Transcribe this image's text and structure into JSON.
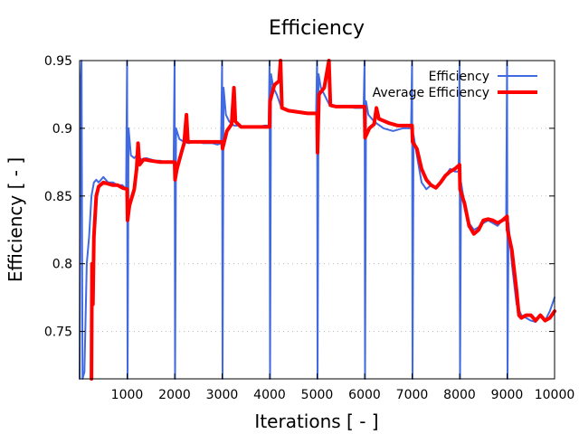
{
  "chart_data": {
    "type": "line",
    "title": "Efficiency",
    "xlabel": "Iterations [ - ]",
    "ylabel": "Efficiency [ - ]",
    "xlim": [
      0,
      10000
    ],
    "ylim": [
      0.715,
      0.95
    ],
    "xticks": [
      1000,
      2000,
      3000,
      4000,
      5000,
      6000,
      7000,
      8000,
      9000,
      10000
    ],
    "xtick_labels": [
      "1000",
      "2000",
      "3000",
      "4000",
      "5000",
      "6000",
      "7000",
      "8000",
      "9000",
      "10000"
    ],
    "yticks": [
      0.75,
      0.8,
      0.85,
      0.9,
      0.95
    ],
    "ytick_labels": [
      "0.75",
      "0.8",
      "0.85",
      "0.9",
      "0.95"
    ],
    "grid": true,
    "legend_position": "top-right",
    "series": [
      {
        "name": "Efficiency",
        "color": "#4169e1",
        "points": [
          [
            0,
            0.715
          ],
          [
            20,
            0.93
          ],
          [
            40,
            0.95
          ],
          [
            60,
            0.715
          ],
          [
            100,
            0.72
          ],
          [
            150,
            0.8
          ],
          [
            200,
            0.82
          ],
          [
            250,
            0.85
          ],
          [
            300,
            0.86
          ],
          [
            350,
            0.862
          ],
          [
            400,
            0.86
          ],
          [
            500,
            0.864
          ],
          [
            600,
            0.86
          ],
          [
            700,
            0.86
          ],
          [
            800,
            0.858
          ],
          [
            900,
            0.858
          ],
          [
            980,
            0.855
          ],
          [
            1000,
            0.95
          ],
          [
            1010,
            0.715
          ],
          [
            1030,
            0.9
          ],
          [
            1080,
            0.88
          ],
          [
            1150,
            0.878
          ],
          [
            1200,
            0.88
          ],
          [
            1300,
            0.877
          ],
          [
            1400,
            0.878
          ],
          [
            1500,
            0.877
          ],
          [
            1600,
            0.876
          ],
          [
            1700,
            0.876
          ],
          [
            1800,
            0.875
          ],
          [
            1900,
            0.875
          ],
          [
            1980,
            0.875
          ],
          [
            2000,
            0.95
          ],
          [
            2010,
            0.715
          ],
          [
            2030,
            0.9
          ],
          [
            2100,
            0.892
          ],
          [
            2200,
            0.89
          ],
          [
            2300,
            0.889
          ],
          [
            2400,
            0.89
          ],
          [
            2500,
            0.89
          ],
          [
            2600,
            0.889
          ],
          [
            2700,
            0.889
          ],
          [
            2800,
            0.889
          ],
          [
            2900,
            0.888
          ],
          [
            2980,
            0.889
          ],
          [
            3000,
            0.95
          ],
          [
            3010,
            0.715
          ],
          [
            3030,
            0.93
          ],
          [
            3080,
            0.91
          ],
          [
            3150,
            0.905
          ],
          [
            3250,
            0.902
          ],
          [
            3350,
            0.902
          ],
          [
            3450,
            0.901
          ],
          [
            3600,
            0.901
          ],
          [
            3750,
            0.901
          ],
          [
            3900,
            0.902
          ],
          [
            3980,
            0.902
          ],
          [
            4000,
            0.95
          ],
          [
            4010,
            0.715
          ],
          [
            4030,
            0.94
          ],
          [
            4080,
            0.93
          ],
          [
            4150,
            0.925
          ],
          [
            4250,
            0.915
          ],
          [
            4350,
            0.913
          ],
          [
            4500,
            0.912
          ],
          [
            4700,
            0.911
          ],
          [
            4900,
            0.911
          ],
          [
            4980,
            0.911
          ],
          [
            5000,
            0.95
          ],
          [
            5010,
            0.715
          ],
          [
            5030,
            0.94
          ],
          [
            5080,
            0.93
          ],
          [
            5150,
            0.925
          ],
          [
            5250,
            0.918
          ],
          [
            5400,
            0.916
          ],
          [
            5600,
            0.916
          ],
          [
            5800,
            0.915
          ],
          [
            5980,
            0.915
          ],
          [
            6000,
            0.95
          ],
          [
            6010,
            0.715
          ],
          [
            6030,
            0.92
          ],
          [
            6080,
            0.91
          ],
          [
            6200,
            0.905
          ],
          [
            6400,
            0.9
          ],
          [
            6600,
            0.898
          ],
          [
            6800,
            0.9
          ],
          [
            6980,
            0.9
          ],
          [
            7000,
            0.95
          ],
          [
            7010,
            0.715
          ],
          [
            7030,
            0.895
          ],
          [
            7100,
            0.88
          ],
          [
            7200,
            0.86
          ],
          [
            7300,
            0.855
          ],
          [
            7400,
            0.858
          ],
          [
            7500,
            0.857
          ],
          [
            7600,
            0.86
          ],
          [
            7700,
            0.865
          ],
          [
            7800,
            0.87
          ],
          [
            7900,
            0.868
          ],
          [
            7980,
            0.868
          ],
          [
            8000,
            0.95
          ],
          [
            8010,
            0.715
          ],
          [
            8030,
            0.86
          ],
          [
            8100,
            0.845
          ],
          [
            8200,
            0.83
          ],
          [
            8300,
            0.825
          ],
          [
            8400,
            0.827
          ],
          [
            8500,
            0.83
          ],
          [
            8600,
            0.832
          ],
          [
            8700,
            0.83
          ],
          [
            8800,
            0.828
          ],
          [
            8900,
            0.832
          ],
          [
            8980,
            0.832
          ],
          [
            9000,
            0.95
          ],
          [
            9010,
            0.715
          ],
          [
            9030,
            0.83
          ],
          [
            9100,
            0.8
          ],
          [
            9200,
            0.77
          ],
          [
            9300,
            0.762
          ],
          [
            9400,
            0.76
          ],
          [
            9500,
            0.758
          ],
          [
            9600,
            0.757
          ],
          [
            9700,
            0.762
          ],
          [
            9800,
            0.758
          ],
          [
            9900,
            0.765
          ],
          [
            10000,
            0.775
          ]
        ]
      },
      {
        "name": "Average Efficiency",
        "color": "#ff0000",
        "points": [
          [
            250,
            0.715
          ],
          [
            260,
            0.8
          ],
          [
            280,
            0.77
          ],
          [
            300,
            0.82
          ],
          [
            350,
            0.85
          ],
          [
            400,
            0.857
          ],
          [
            500,
            0.86
          ],
          [
            600,
            0.859
          ],
          [
            700,
            0.858
          ],
          [
            800,
            0.858
          ],
          [
            900,
            0.856
          ],
          [
            1000,
            0.855
          ],
          [
            1010,
            0.832
          ],
          [
            1050,
            0.843
          ],
          [
            1150,
            0.855
          ],
          [
            1200,
            0.87
          ],
          [
            1230,
            0.889
          ],
          [
            1260,
            0.873
          ],
          [
            1350,
            0.877
          ],
          [
            1500,
            0.876
          ],
          [
            1700,
            0.875
          ],
          [
            1900,
            0.875
          ],
          [
            2000,
            0.875
          ],
          [
            2010,
            0.862
          ],
          [
            2050,
            0.87
          ],
          [
            2150,
            0.883
          ],
          [
            2200,
            0.889
          ],
          [
            2250,
            0.91
          ],
          [
            2280,
            0.89
          ],
          [
            2400,
            0.89
          ],
          [
            2600,
            0.89
          ],
          [
            2800,
            0.89
          ],
          [
            3000,
            0.89
          ],
          [
            3010,
            0.885
          ],
          [
            3100,
            0.898
          ],
          [
            3200,
            0.903
          ],
          [
            3250,
            0.93
          ],
          [
            3280,
            0.905
          ],
          [
            3400,
            0.901
          ],
          [
            3600,
            0.901
          ],
          [
            3800,
            0.901
          ],
          [
            4000,
            0.901
          ],
          [
            4010,
            0.92
          ],
          [
            4100,
            0.932
          ],
          [
            4200,
            0.935
          ],
          [
            4230,
            0.95
          ],
          [
            4260,
            0.915
          ],
          [
            4400,
            0.913
          ],
          [
            4600,
            0.912
          ],
          [
            4800,
            0.911
          ],
          [
            5000,
            0.911
          ],
          [
            5010,
            0.882
          ],
          [
            5040,
            0.925
          ],
          [
            5150,
            0.93
          ],
          [
            5250,
            0.95
          ],
          [
            5280,
            0.917
          ],
          [
            5400,
            0.916
          ],
          [
            5600,
            0.916
          ],
          [
            5800,
            0.916
          ],
          [
            6000,
            0.916
          ],
          [
            6010,
            0.893
          ],
          [
            6100,
            0.9
          ],
          [
            6200,
            0.903
          ],
          [
            6250,
            0.915
          ],
          [
            6300,
            0.907
          ],
          [
            6500,
            0.904
          ],
          [
            6700,
            0.902
          ],
          [
            6900,
            0.902
          ],
          [
            7000,
            0.902
          ],
          [
            7010,
            0.89
          ],
          [
            7100,
            0.885
          ],
          [
            7200,
            0.87
          ],
          [
            7300,
            0.862
          ],
          [
            7400,
            0.858
          ],
          [
            7500,
            0.856
          ],
          [
            7600,
            0.86
          ],
          [
            7700,
            0.865
          ],
          [
            7800,
            0.868
          ],
          [
            7900,
            0.87
          ],
          [
            8000,
            0.873
          ],
          [
            8010,
            0.855
          ],
          [
            8100,
            0.845
          ],
          [
            8200,
            0.828
          ],
          [
            8300,
            0.822
          ],
          [
            8400,
            0.825
          ],
          [
            8500,
            0.832
          ],
          [
            8600,
            0.833
          ],
          [
            8700,
            0.832
          ],
          [
            8800,
            0.83
          ],
          [
            8900,
            0.832
          ],
          [
            9000,
            0.835
          ],
          [
            9010,
            0.825
          ],
          [
            9100,
            0.81
          ],
          [
            9200,
            0.78
          ],
          [
            9250,
            0.762
          ],
          [
            9300,
            0.76
          ],
          [
            9400,
            0.762
          ],
          [
            9500,
            0.762
          ],
          [
            9600,
            0.758
          ],
          [
            9700,
            0.762
          ],
          [
            9800,
            0.758
          ],
          [
            9900,
            0.76
          ],
          [
            10000,
            0.765
          ]
        ]
      }
    ]
  }
}
